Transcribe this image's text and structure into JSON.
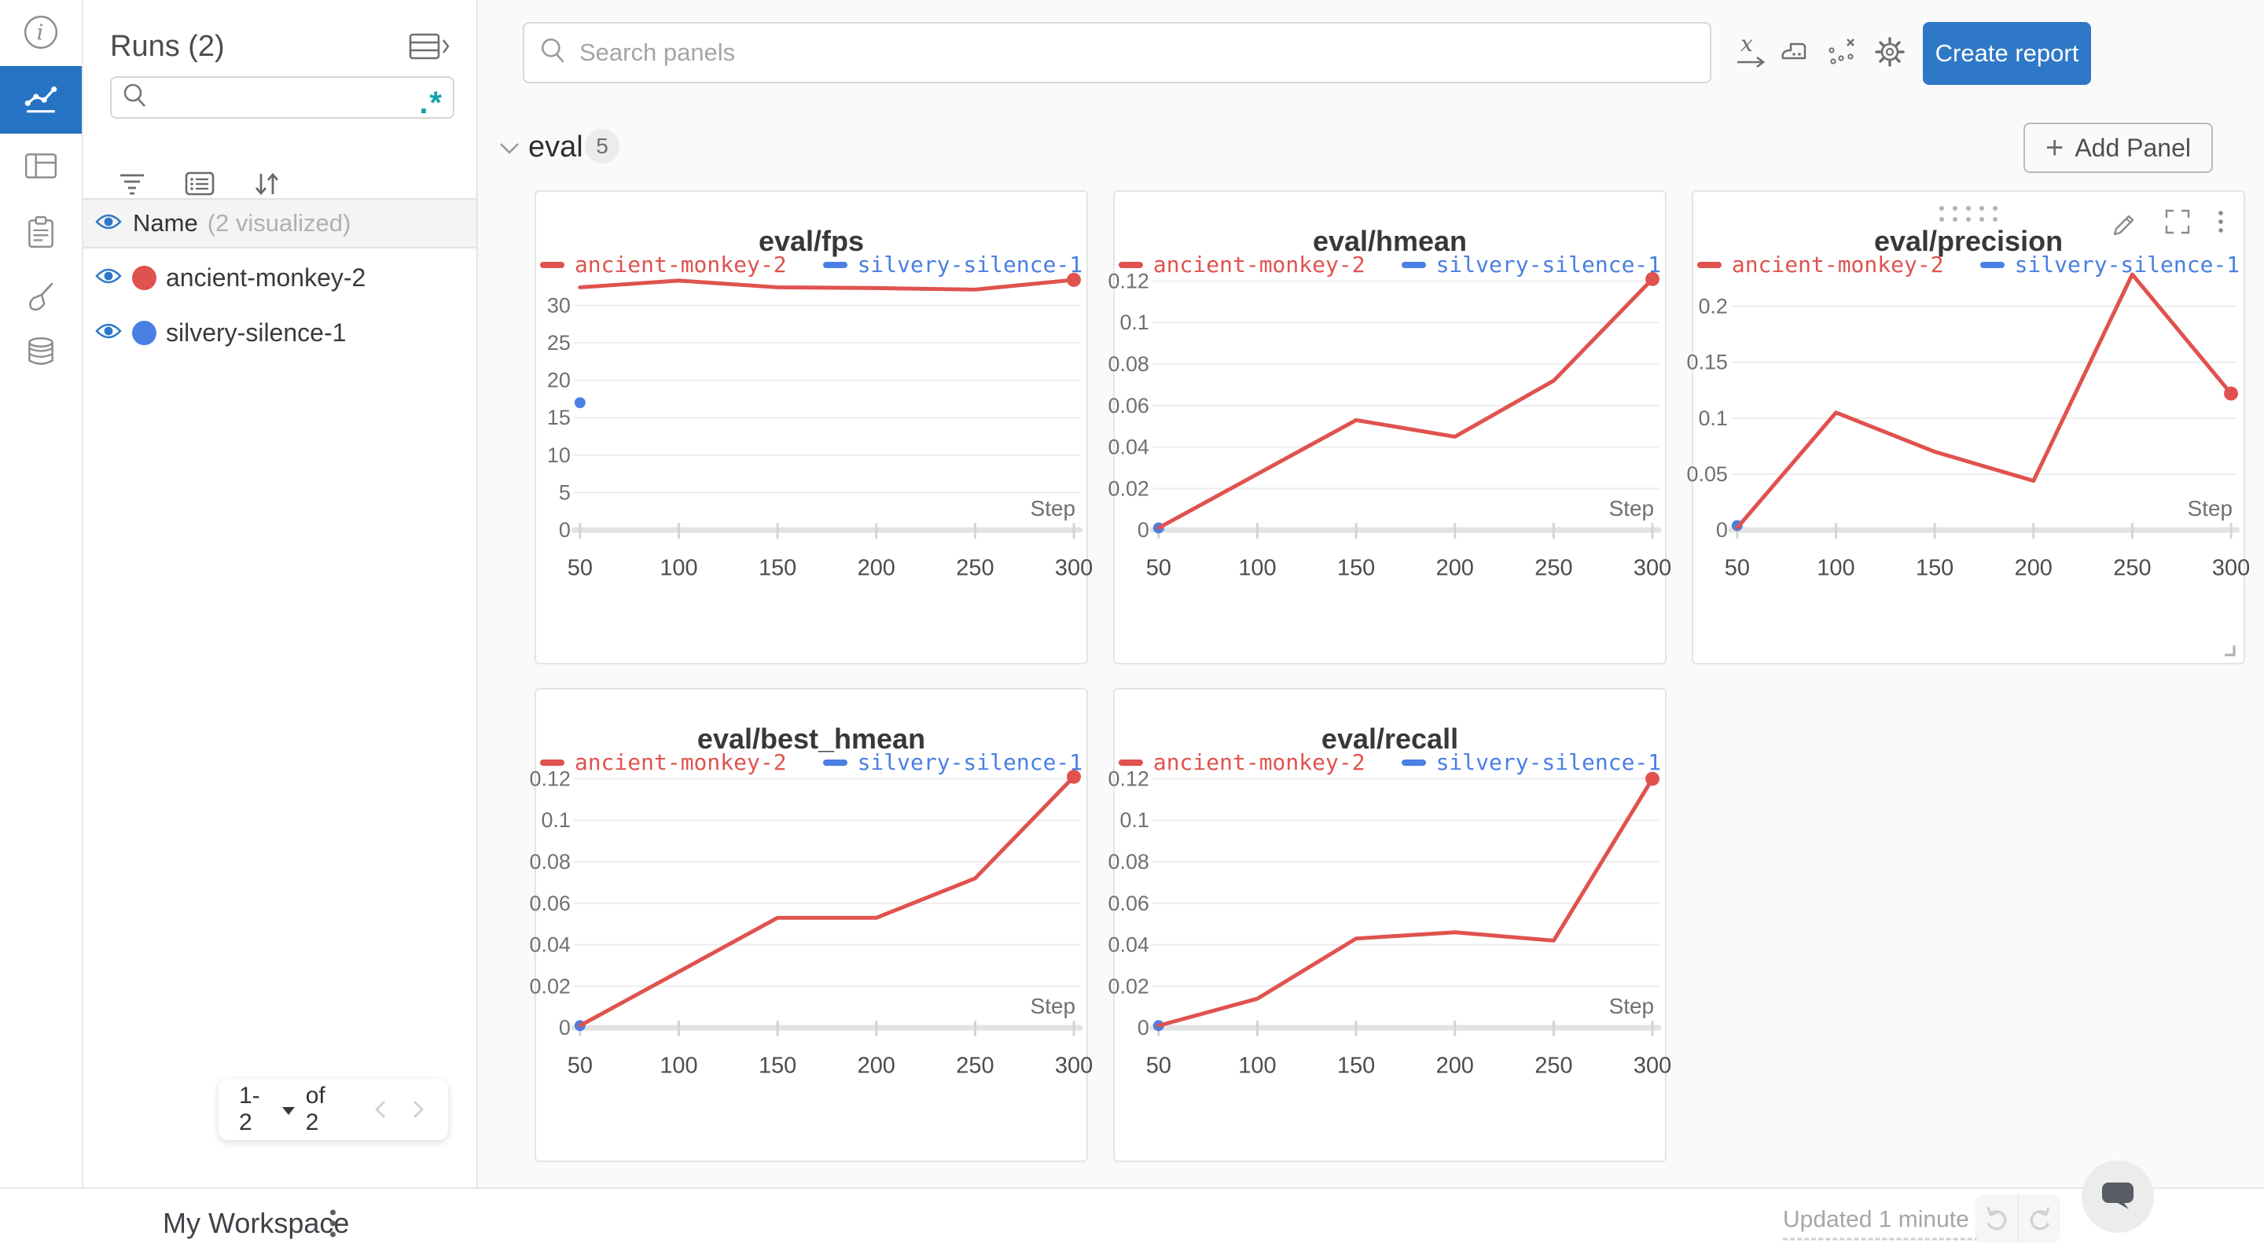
{
  "colors": {
    "accent": "#2e78c7",
    "rail_active": "#2573c2",
    "run_red": "#e0524e",
    "run_blue": "#4a7fe3",
    "regex_teal": "#14a0ac"
  },
  "left_rail": {
    "items": [
      "info",
      "line-chart",
      "table",
      "clipboard",
      "brush",
      "database"
    ],
    "active": "line-chart"
  },
  "runs_panel": {
    "title": "Runs (2)",
    "search_value": "",
    "regex_icon": ".*",
    "header": {
      "label": "Name",
      "note": "(2 visualized)"
    },
    "runs": [
      {
        "name": "ancient-monkey-2",
        "color": "#e0524e"
      },
      {
        "name": "silvery-silence-1",
        "color": "#4a7fe3"
      }
    ],
    "pagination": {
      "range": "1-2",
      "of_label": "of 2"
    }
  },
  "topbar": {
    "search_placeholder": "Search panels",
    "create_report_label": "Create report"
  },
  "section": {
    "title": "eval",
    "count": "5",
    "add_panel_label": "Add Panel",
    "plus": "+"
  },
  "footer": {
    "workspace": "My Workspace",
    "updated": "Updated 1 minute ago"
  },
  "chart_data": [
    {
      "type": "line",
      "title": "eval/fps",
      "xlabel": "Step",
      "x": [
        50,
        100,
        150,
        200,
        250,
        300
      ],
      "ylim": [
        0,
        34.2
      ],
      "yticks": [
        {
          "v": 0,
          "l": "0"
        },
        {
          "v": 5,
          "l": "5"
        },
        {
          "v": 10,
          "l": "10"
        },
        {
          "v": 15,
          "l": "15"
        },
        {
          "v": 20,
          "l": "20"
        },
        {
          "v": 25,
          "l": "25"
        },
        {
          "v": 30,
          "l": "30"
        }
      ],
      "series": [
        {
          "name": "ancient-monkey-2",
          "color": "#e0524e",
          "values": [
            32.4,
            33.3,
            32.4,
            32.3,
            32.1,
            33.4
          ]
        },
        {
          "name": "silvery-silence-1",
          "color": "#4a7fe3",
          "point": {
            "x": 50,
            "y": 17
          }
        }
      ],
      "hover_chrome": false
    },
    {
      "type": "line",
      "title": "eval/hmean",
      "xlabel": "Step",
      "x": [
        50,
        100,
        150,
        200,
        250,
        300
      ],
      "ylim": [
        0,
        0.1235
      ],
      "yticks": [
        {
          "v": 0,
          "l": "0"
        },
        {
          "v": 0.02,
          "l": "0.02"
        },
        {
          "v": 0.04,
          "l": "0.04"
        },
        {
          "v": 0.06,
          "l": "0.06"
        },
        {
          "v": 0.08,
          "l": "0.08"
        },
        {
          "v": 0.1,
          "l": "0.1"
        },
        {
          "v": 0.12,
          "l": "0.12"
        }
      ],
      "series": [
        {
          "name": "ancient-monkey-2",
          "color": "#e0524e",
          "values": [
            0.001,
            0.027,
            0.053,
            0.045,
            0.072,
            0.121
          ]
        },
        {
          "name": "silvery-silence-1",
          "color": "#4a7fe3",
          "point": {
            "x": 50,
            "y": 0.001
          }
        }
      ],
      "hover_chrome": false
    },
    {
      "type": "line",
      "title": "eval/precision",
      "xlabel": "Step",
      "x": [
        50,
        100,
        150,
        200,
        250,
        300
      ],
      "ylim": [
        0,
        0.229
      ],
      "yticks": [
        {
          "v": 0,
          "l": "0"
        },
        {
          "v": 0.05,
          "l": "0.05"
        },
        {
          "v": 0.1,
          "l": "0.1"
        },
        {
          "v": 0.15,
          "l": "0.15"
        },
        {
          "v": 0.2,
          "l": "0.2"
        }
      ],
      "series": [
        {
          "name": "ancient-monkey-2",
          "color": "#e0524e",
          "values": [
            0.002,
            0.105,
            0.07,
            0.044,
            0.2285,
            0.122
          ]
        },
        {
          "name": "silvery-silence-1",
          "color": "#4a7fe3",
          "point": {
            "x": 50,
            "y": 0.004
          }
        }
      ],
      "hover_chrome": true
    },
    {
      "type": "line",
      "title": "eval/best_hmean",
      "xlabel": "Step",
      "x": [
        50,
        100,
        150,
        200,
        250,
        300
      ],
      "ylim": [
        0,
        0.1235
      ],
      "yticks": [
        {
          "v": 0,
          "l": "0"
        },
        {
          "v": 0.02,
          "l": "0.02"
        },
        {
          "v": 0.04,
          "l": "0.04"
        },
        {
          "v": 0.06,
          "l": "0.06"
        },
        {
          "v": 0.08,
          "l": "0.08"
        },
        {
          "v": 0.1,
          "l": "0.1"
        },
        {
          "v": 0.12,
          "l": "0.12"
        }
      ],
      "series": [
        {
          "name": "ancient-monkey-2",
          "color": "#e0524e",
          "values": [
            0.001,
            0.027,
            0.053,
            0.053,
            0.072,
            0.121
          ]
        },
        {
          "name": "silvery-silence-1",
          "color": "#4a7fe3",
          "point": {
            "x": 50,
            "y": 0.001
          }
        }
      ],
      "hover_chrome": false
    },
    {
      "type": "line",
      "title": "eval/recall",
      "xlabel": "Step",
      "x": [
        50,
        100,
        150,
        200,
        250,
        300
      ],
      "ylim": [
        0,
        0.1235
      ],
      "yticks": [
        {
          "v": 0,
          "l": "0"
        },
        {
          "v": 0.02,
          "l": "0.02"
        },
        {
          "v": 0.04,
          "l": "0.04"
        },
        {
          "v": 0.06,
          "l": "0.06"
        },
        {
          "v": 0.08,
          "l": "0.08"
        },
        {
          "v": 0.1,
          "l": "0.1"
        },
        {
          "v": 0.12,
          "l": "0.12"
        }
      ],
      "series": [
        {
          "name": "ancient-monkey-2",
          "color": "#e0524e",
          "values": [
            0.001,
            0.014,
            0.043,
            0.046,
            0.042,
            0.12
          ]
        },
        {
          "name": "silvery-silence-1",
          "color": "#4a7fe3",
          "point": {
            "x": 50,
            "y": 0.001
          }
        }
      ],
      "hover_chrome": false
    }
  ]
}
